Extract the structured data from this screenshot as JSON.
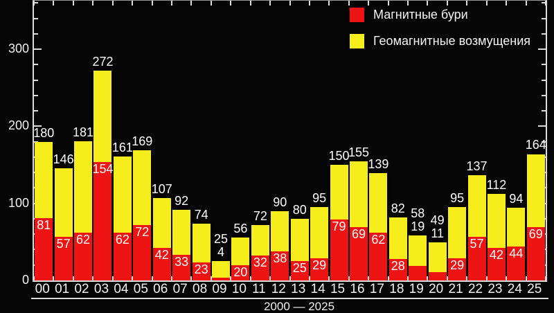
{
  "chart_data": {
    "type": "bar",
    "stacked": true,
    "title": "",
    "xlabel": "2000 — 2025",
    "ylabel": "",
    "categories": [
      "00",
      "01",
      "02",
      "03",
      "04",
      "05",
      "06",
      "07",
      "08",
      "09",
      "10",
      "11",
      "12",
      "13",
      "14",
      "15",
      "16",
      "17",
      "18",
      "19",
      "20",
      "21",
      "22",
      "23",
      "24",
      "25"
    ],
    "totals": [
      180,
      146,
      181,
      272,
      161,
      169,
      107,
      92,
      74,
      25,
      56,
      72,
      90,
      80,
      95,
      150,
      155,
      139,
      82,
      58,
      49,
      95,
      137,
      112,
      94,
      164
    ],
    "series": [
      {
        "name": "Магнитные бури",
        "color": "#ee1414",
        "values": [
          81,
          57,
          62,
          154,
          62,
          72,
          42,
          33,
          23,
          4,
          20,
          32,
          38,
          25,
          29,
          79,
          69,
          62,
          28,
          19,
          11,
          29,
          57,
          42,
          44,
          69
        ]
      },
      {
        "name": "Геомагнитные возмущения",
        "color": "#f6ee1c",
        "values": [
          99,
          89,
          119,
          118,
          99,
          97,
          65,
          59,
          51,
          21,
          36,
          40,
          52,
          55,
          66,
          71,
          86,
          77,
          54,
          39,
          38,
          66,
          80,
          70,
          50,
          95
        ]
      }
    ],
    "ylim": [
      0,
      363
    ],
    "yticks": [
      0,
      100,
      200,
      300
    ],
    "minor_tick_step": 20,
    "grid": false,
    "legend_position": "top-right",
    "background_color": "#000000",
    "text_color": "#ffffff",
    "axis_color": "#dcdcdc",
    "outside_red_label_indices": [
      9,
      19,
      20
    ]
  },
  "legend": {
    "items": [
      {
        "label": "Магнитные бури",
        "color": "#ee1414"
      },
      {
        "label": "Геомагнитные возмущения",
        "color": "#f6ee1c"
      }
    ]
  }
}
